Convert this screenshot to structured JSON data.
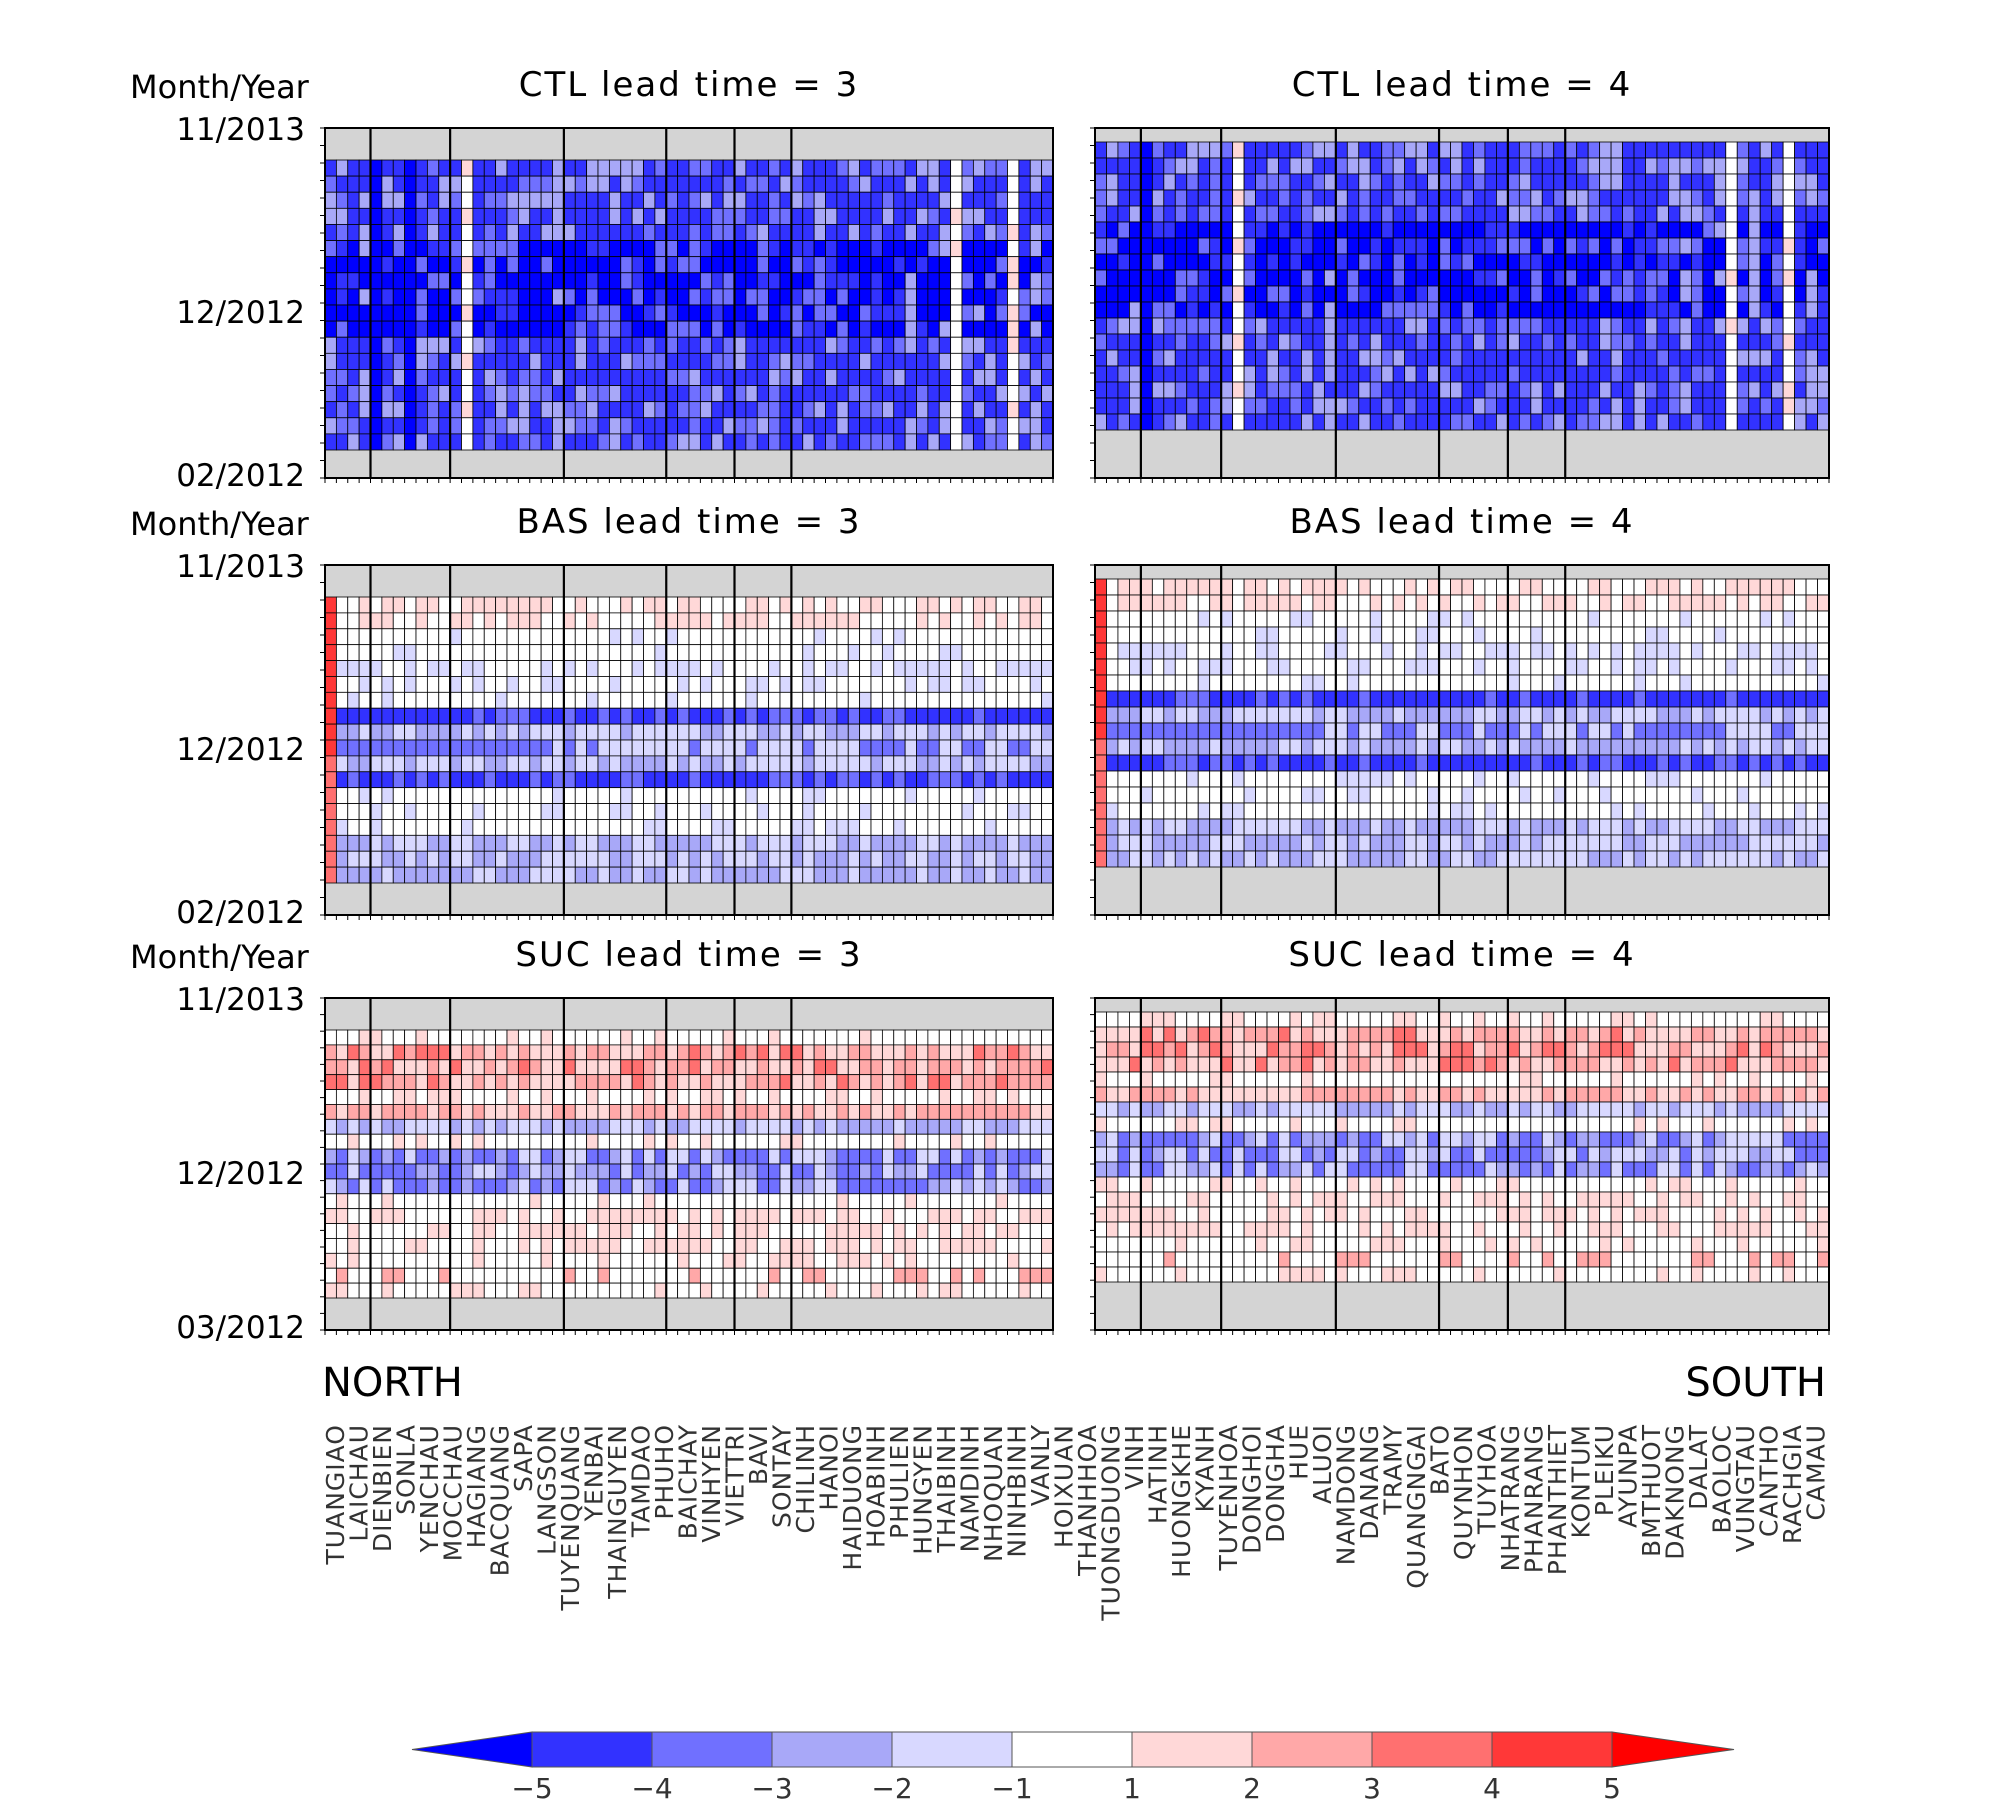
{
  "chart_data": {
    "type": "heatmap",
    "y_axis_label": "Month/Year",
    "region_labels": {
      "left": "NORTH",
      "right": "SOUTH"
    },
    "stations": [
      "TUANGIAO",
      "LAICHAU",
      "DIENBIEN",
      "SONLA",
      "YENCHAU",
      "MOCCHAU",
      "HAGIANG",
      "BACQUANG",
      "SAPA",
      "LANGSON",
      "TUYENQUANG",
      "YENBAI",
      "THAINGUYEN",
      "TAMDAO",
      "PHUHO",
      "BAICHAY",
      "VINHYEN",
      "VIETTRI",
      "BAVI",
      "SONTAY",
      "CHILINH",
      "HANOI",
      "HAIDUONG",
      "HOABINH",
      "PHULIEN",
      "HUNGYEN",
      "THAIBINH",
      "NAMDINH",
      "NHOQUAN",
      "NINHBINH",
      "VANLY",
      "HOIXUAN",
      "THANHHOA",
      "TUONGDUONG",
      "VINH",
      "HATINH",
      "HUONGKHE",
      "KYANH",
      "TUYENHOA",
      "DONGHOI",
      "DONGHA",
      "HUE",
      "ALUOI",
      "NAMDONG",
      "DANANG",
      "TRAMY",
      "QUANGNGAI",
      "BATO",
      "QUYNHON",
      "TUYHOA",
      "NHATRANG",
      "PHANRANG",
      "PHANTHIET",
      "KONTUM",
      "PLEIKU",
      "AYUNPA",
      "BMTHUOT",
      "DAKNONG",
      "DALAT",
      "BAOLOC",
      "VUNGTAU",
      "CANTHO",
      "RACHGIA",
      "CAMAU"
    ],
    "colorbar": {
      "levels": [
        -5,
        -4,
        -3,
        -2,
        -1,
        1,
        2,
        3,
        4,
        5
      ],
      "colors": [
        "#0000ff",
        "#3232ff",
        "#7070ff",
        "#a8a8f8",
        "#d8d8ff",
        "#ffffff",
        "#ffd8d8",
        "#ffa8a8",
        "#ff7070",
        "#ff3838",
        "#ff0000"
      ],
      "extend": "both"
    },
    "panels": [
      {
        "title": "CTL  lead  time  =  3",
        "y_ticks": [
          "11/2013",
          "12/2012",
          "02/2012"
        ],
        "pattern": "ctl"
      },
      {
        "title": "CTL  lead  time  =  4",
        "y_ticks": [],
        "pattern": "ctl"
      },
      {
        "title": "BAS  lead  time  =  3",
        "y_ticks": [
          "11/2013",
          "12/2012",
          "02/2012"
        ],
        "pattern": "bas"
      },
      {
        "title": "BAS  lead  time  =  4",
        "y_ticks": [],
        "pattern": "bas"
      },
      {
        "title": "SUC  lead  time  =  3",
        "y_ticks": [
          "11/2013",
          "12/2012",
          "03/2012"
        ],
        "pattern": "suc"
      },
      {
        "title": "SUC  lead  time  =  4",
        "y_ticks": [],
        "pattern": "suc"
      }
    ]
  }
}
